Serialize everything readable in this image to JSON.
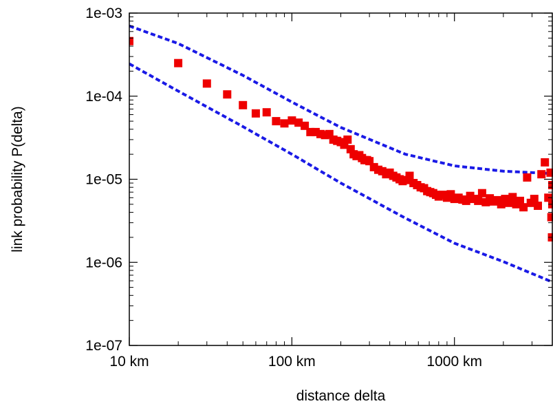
{
  "chart_data": {
    "type": "scatter",
    "title": "",
    "xlabel": "distance delta",
    "ylabel": "link probability P(delta)",
    "x_scale": "log",
    "y_scale": "log",
    "xlim": [
      10,
      4000
    ],
    "ylim": [
      1e-07,
      0.001
    ],
    "x_ticks": [
      {
        "value": 10,
        "label": "10 km"
      },
      {
        "value": 100,
        "label": "100 km"
      },
      {
        "value": 1000,
        "label": "1000 km"
      }
    ],
    "y_ticks": [
      {
        "value": 0.001,
        "label": "1e-03"
      },
      {
        "value": 0.0001,
        "label": "1e-04"
      },
      {
        "value": 1e-05,
        "label": "1e-05"
      },
      {
        "value": 1e-06,
        "label": "1e-06"
      },
      {
        "value": 1e-07,
        "label": "1e-07"
      }
    ],
    "grid": false,
    "legend": "none",
    "series": [
      {
        "kind": "points",
        "marker": "square",
        "color": "#ee0000",
        "x": [
          10,
          20,
          30,
          40,
          50,
          60,
          70,
          80,
          90,
          100,
          110,
          120,
          130,
          140,
          150,
          160,
          170,
          180,
          190,
          200,
          210,
          220,
          230,
          240,
          250,
          260,
          270,
          280,
          290,
          300,
          320,
          340,
          360,
          380,
          400,
          420,
          440,
          460,
          480,
          500,
          530,
          560,
          590,
          620,
          650,
          680,
          710,
          740,
          770,
          800,
          850,
          900,
          950,
          1000,
          1060,
          1120,
          1180,
          1250,
          1320,
          1400,
          1480,
          1560,
          1650,
          1740,
          1840,
          1940,
          2050,
          2160,
          2280,
          2400,
          2530,
          2660,
          2800,
          2950,
          3100,
          3260,
          3430,
          3600,
          3780,
          3900,
          4000,
          3950,
          3980,
          4000
        ],
        "y": [
          0.00046,
          0.00025,
          0.000142,
          0.000105,
          7.8e-05,
          6.2e-05,
          6.4e-05,
          5e-05,
          4.7e-05,
          5.1e-05,
          4.8e-05,
          4.4e-05,
          3.7e-05,
          3.7e-05,
          3.5e-05,
          3.4e-05,
          3.5e-05,
          3e-05,
          2.9e-05,
          2.8e-05,
          2.6e-05,
          3e-05,
          2.3e-05,
          2e-05,
          1.9e-05,
          1.95e-05,
          1.8e-05,
          1.7e-05,
          1.7e-05,
          1.65e-05,
          1.4e-05,
          1.3e-05,
          1.25e-05,
          1.15e-05,
          1.2e-05,
          1.1e-05,
          1.05e-05,
          1e-05,
          9.5e-06,
          9.8e-06,
          1.1e-05,
          9e-06,
          8.5e-06,
          8e-06,
          7.8e-06,
          7.2e-06,
          7e-06,
          6.8e-06,
          6.5e-06,
          6.2e-06,
          6.5e-06,
          6e-06,
          6.6e-06,
          5.8e-06,
          6e-06,
          5.7e-06,
          5.5e-06,
          6.3e-06,
          5.8e-06,
          5.5e-06,
          6.8e-06,
          5.3e-06,
          5.9e-06,
          5.4e-06,
          5.6e-06,
          5e-06,
          5.8e-06,
          5.2e-06,
          6.1e-06,
          5e-06,
          5.5e-06,
          4.6e-06,
          1.05e-05,
          5.2e-06,
          5.8e-06,
          4.8e-06,
          1.15e-05,
          1.6e-05,
          6e-06,
          1.2e-05,
          8.5e-06,
          3.5e-06,
          2e-06,
          5e-06
        ]
      },
      {
        "kind": "line",
        "style": "dashed",
        "color": "#1a1ae6",
        "x": [
          10,
          20,
          50,
          100,
          200,
          500,
          1000,
          2000,
          4000
        ],
        "y": [
          0.0007,
          0.00043,
          0.000178,
          8.5e-05,
          4.2e-05,
          2e-05,
          1.45e-05,
          1.25e-05,
          1.17e-05
        ]
      },
      {
        "kind": "line",
        "style": "dashed",
        "color": "#1a1ae6",
        "x": [
          10,
          20,
          50,
          100,
          200,
          500,
          1000,
          2000,
          4000
        ],
        "y": [
          0.000245,
          0.000115,
          4.3e-05,
          2e-05,
          9e-06,
          3.4e-06,
          1.7e-06,
          1.02e-06,
          5.8e-07
        ]
      }
    ]
  }
}
